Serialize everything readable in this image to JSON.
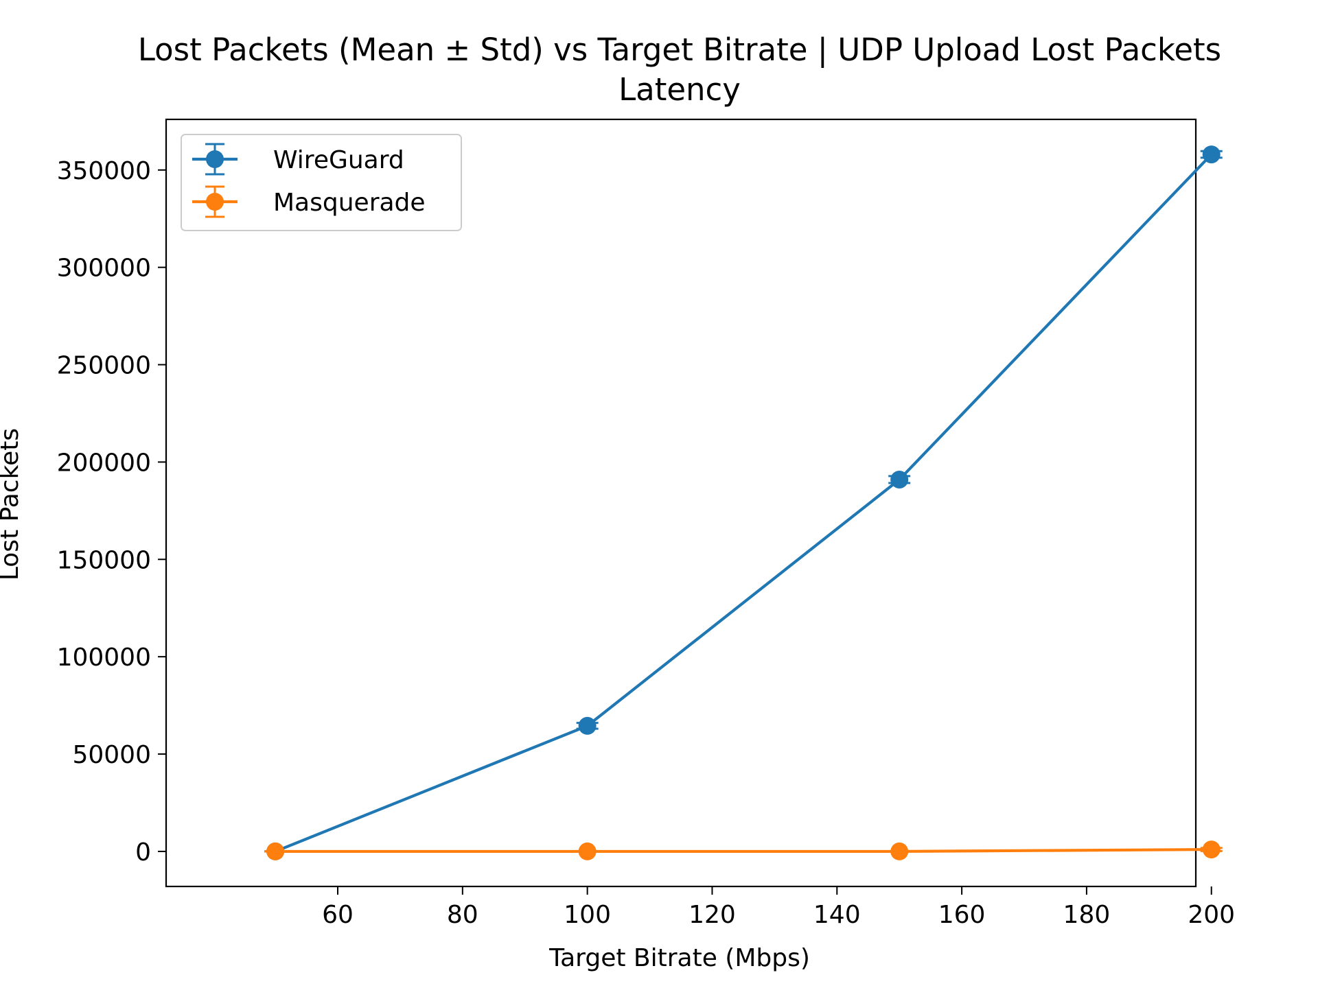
{
  "chart_data": {
    "type": "line",
    "title_line1": "Lost Packets (Mean ± Std) vs Target Bitrate | UDP Upload Lost Packets",
    "title_line2": "Latency",
    "xlabel": "Target Bitrate (Mbps)",
    "ylabel": "Lost Packets",
    "xlim": [
      32.5,
      197.5
    ],
    "ylim": [
      -18000,
      376000
    ],
    "xticks": [
      60,
      80,
      100,
      120,
      140,
      160,
      180,
      200
    ],
    "yticks": [
      0,
      50000,
      100000,
      150000,
      200000,
      250000,
      300000,
      350000
    ],
    "grid": false,
    "legend_position": "upper-left",
    "x": [
      50,
      100,
      150,
      200
    ],
    "series": [
      {
        "name": "WireGuard",
        "color": "#1f77b4",
        "values": [
          0,
          64500,
          191000,
          358000
        ],
        "std": [
          0,
          1500,
          1800,
          1700
        ]
      },
      {
        "name": "Masquerade",
        "color": "#ff7f0e",
        "values": [
          0,
          0,
          0,
          1000
        ],
        "std": [
          0,
          0,
          0,
          800
        ]
      }
    ]
  }
}
